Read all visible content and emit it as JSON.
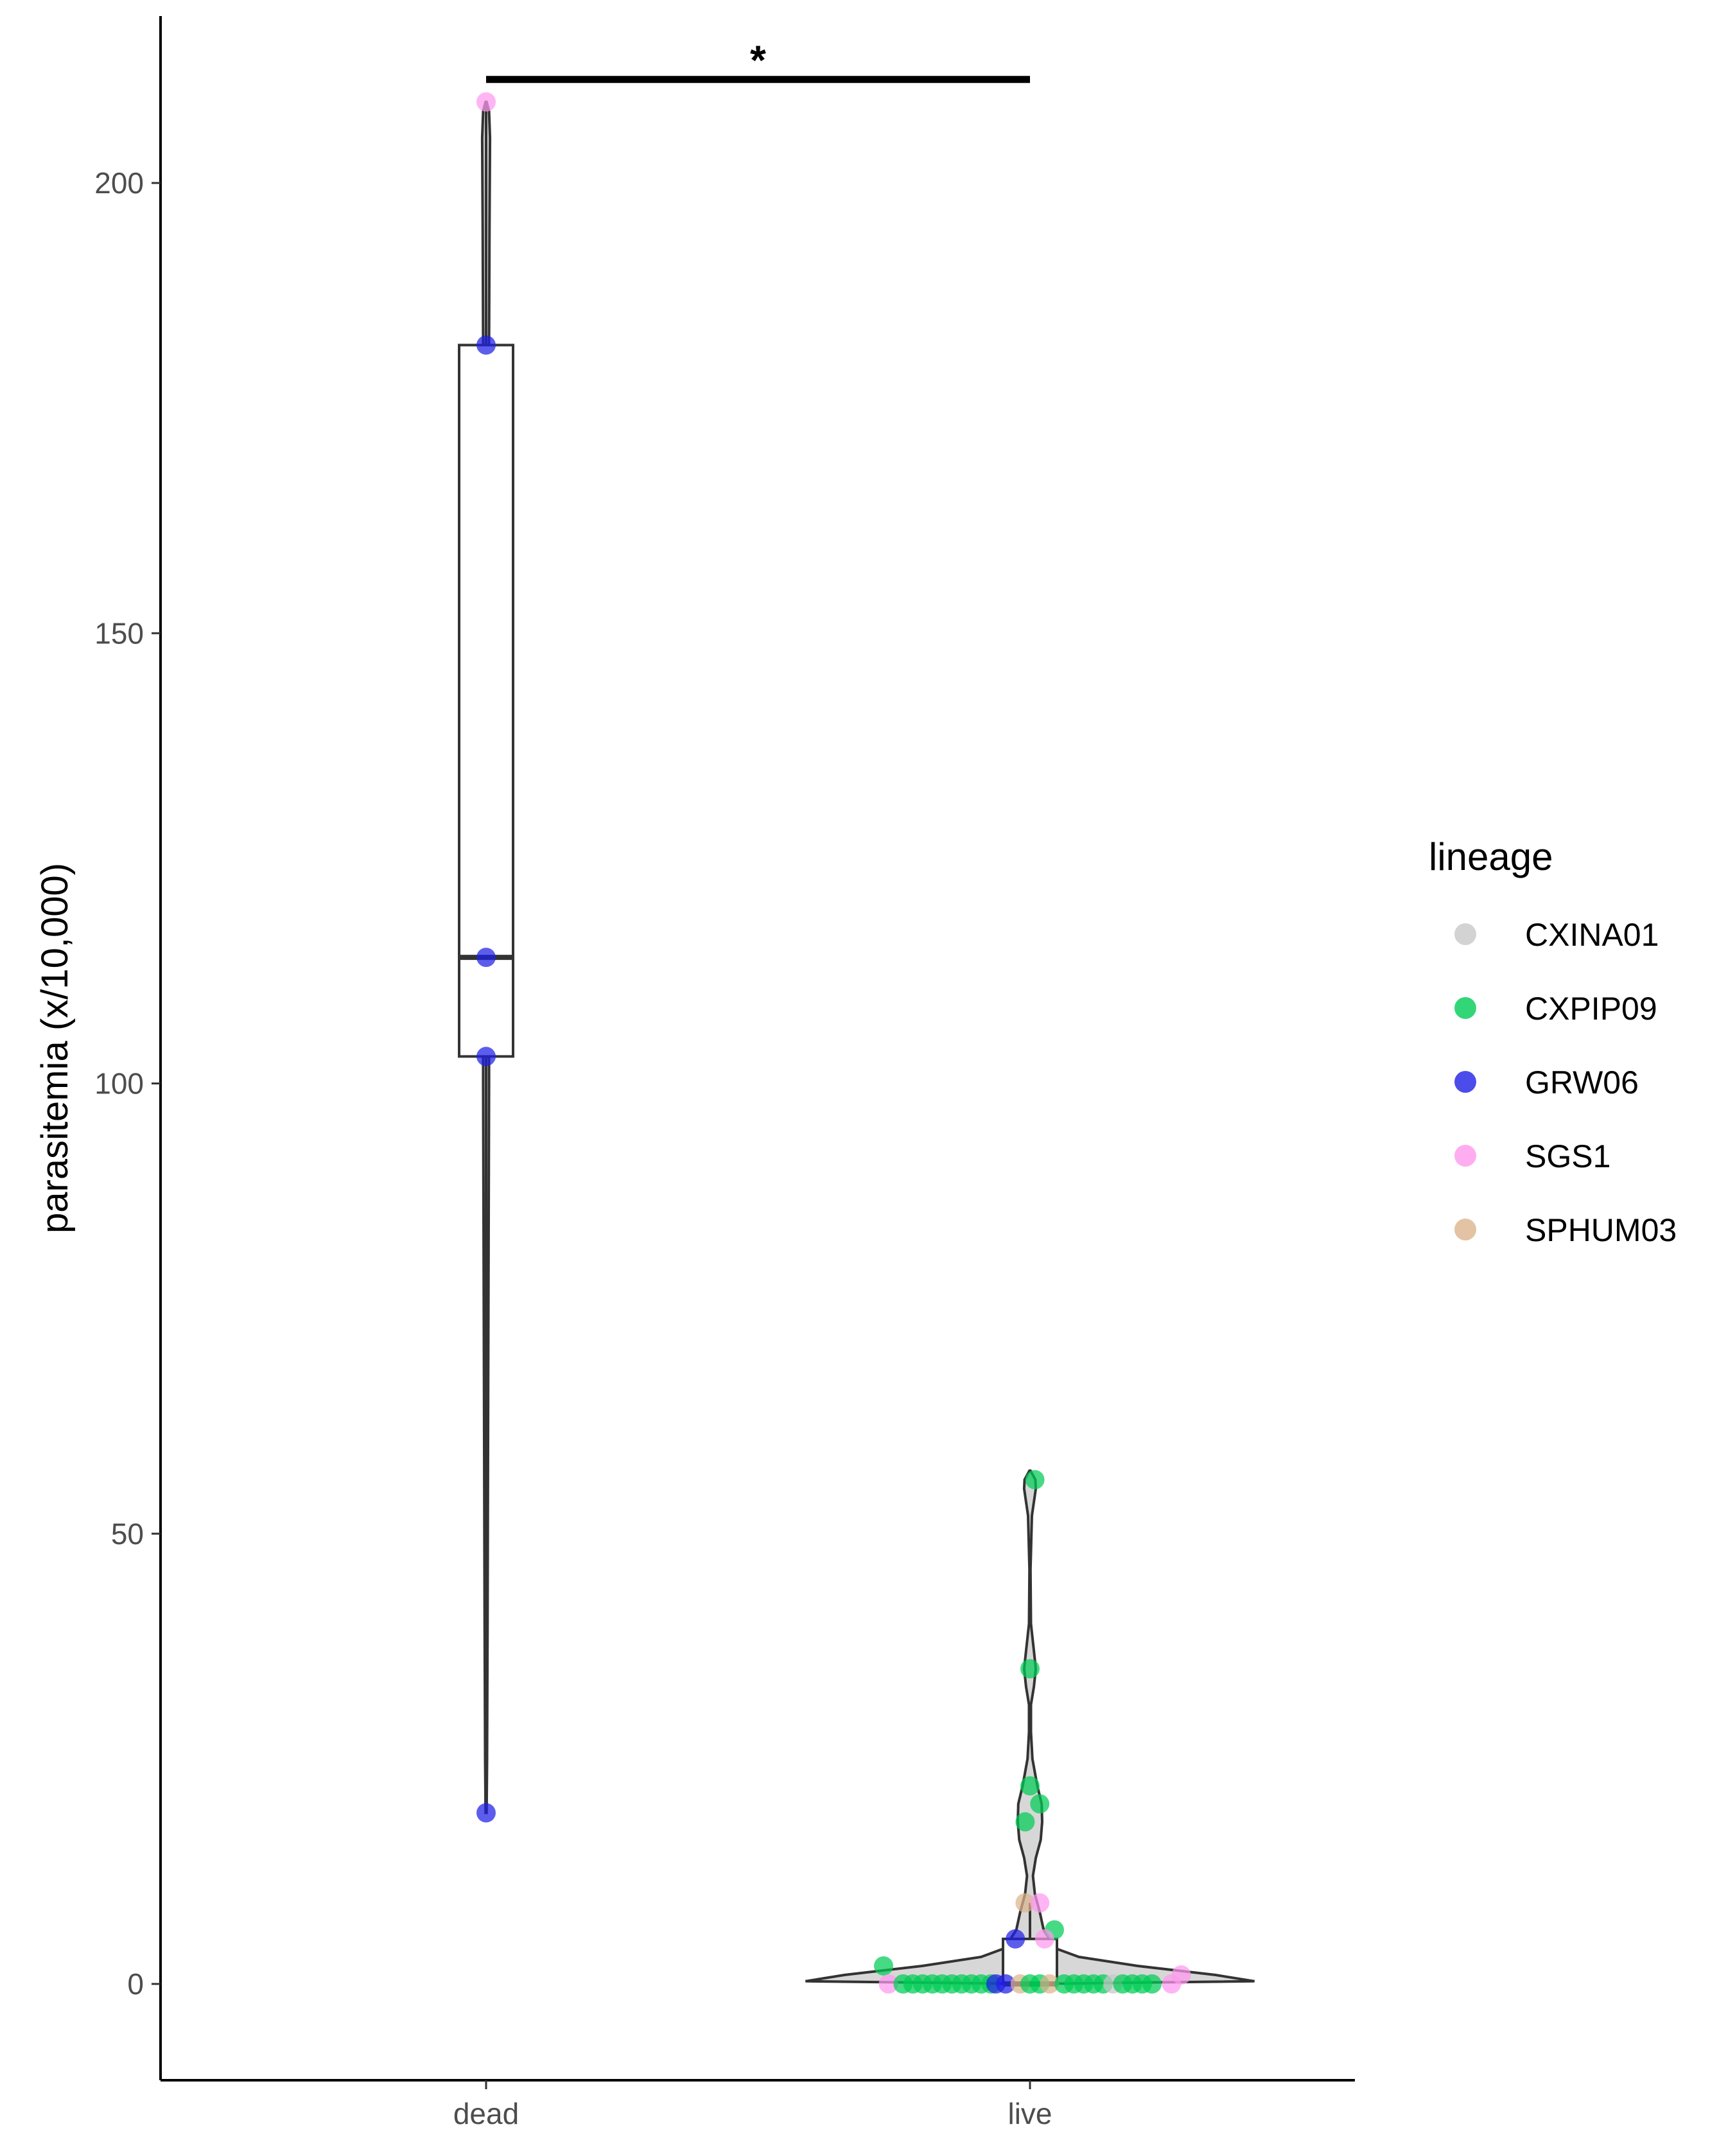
{
  "chart_data": {
    "type": "violin",
    "title": "",
    "xlabel": "",
    "ylabel": "parasitemia (x/10,000)",
    "categories": [
      "dead",
      "live"
    ],
    "yticks": [
      0,
      50,
      100,
      150,
      200
    ],
    "ylim": [
      -10,
      220
    ],
    "grid": false,
    "legend": {
      "title": "lineage",
      "placement": "right",
      "entries": [
        {
          "name": "CXINA01",
          "color": "#c8c8c8"
        },
        {
          "name": "CXPIP09",
          "color": "#00cc55"
        },
        {
          "name": "GRW06",
          "color": "#1f1fe6"
        },
        {
          "name": "SGS1",
          "color": "#ff99ee"
        },
        {
          "name": "SPHUM03",
          "color": "#dcb48c"
        }
      ]
    },
    "boxplots": [
      {
        "category": "dead",
        "lower_whisker": 19,
        "q1": 103,
        "median": 114,
        "q3": 182,
        "upper_whisker": 209
      },
      {
        "category": "live",
        "lower_whisker": 0,
        "q1": 0,
        "median": 0,
        "q3": 5,
        "upper_whisker": 9
      }
    ],
    "points": [
      {
        "category": "dead",
        "lineage": "SGS1",
        "y": 209,
        "jitter": 0
      },
      {
        "category": "dead",
        "lineage": "GRW06",
        "y": 182,
        "jitter": 0
      },
      {
        "category": "dead",
        "lineage": "GRW06",
        "y": 114,
        "jitter": 0
      },
      {
        "category": "dead",
        "lineage": "GRW06",
        "y": 103,
        "jitter": 0
      },
      {
        "category": "dead",
        "lineage": "GRW06",
        "y": 19,
        "jitter": 0
      },
      {
        "category": "live",
        "lineage": "CXPIP09",
        "y": 56,
        "jitter": 0.01
      },
      {
        "category": "live",
        "lineage": "CXPIP09",
        "y": 35,
        "jitter": 0.0
      },
      {
        "category": "live",
        "lineage": "CXPIP09",
        "y": 22,
        "jitter": 0.0
      },
      {
        "category": "live",
        "lineage": "CXPIP09",
        "y": 20,
        "jitter": 0.02
      },
      {
        "category": "live",
        "lineage": "CXPIP09",
        "y": 18,
        "jitter": -0.01
      },
      {
        "category": "live",
        "lineage": "SPHUM03",
        "y": 9,
        "jitter": -0.01
      },
      {
        "category": "live",
        "lineage": "SGS1",
        "y": 9,
        "jitter": 0.02
      },
      {
        "category": "live",
        "lineage": "CXPIP09",
        "y": 6,
        "jitter": 0.05
      },
      {
        "category": "live",
        "lineage": "GRW06",
        "y": 5,
        "jitter": -0.03
      },
      {
        "category": "live",
        "lineage": "SGS1",
        "y": 5,
        "jitter": 0.03
      },
      {
        "category": "live",
        "lineage": "CXPIP09",
        "y": 2,
        "jitter": -0.3
      },
      {
        "category": "live",
        "lineage": "SGS1",
        "y": 0,
        "jitter": -0.29
      },
      {
        "category": "live",
        "lineage": "CXPIP09",
        "y": 0,
        "jitter": -0.26
      },
      {
        "category": "live",
        "lineage": "CXPIP09",
        "y": 0,
        "jitter": -0.24
      },
      {
        "category": "live",
        "lineage": "CXPIP09",
        "y": 0,
        "jitter": -0.22
      },
      {
        "category": "live",
        "lineage": "CXPIP09",
        "y": 0,
        "jitter": -0.2
      },
      {
        "category": "live",
        "lineage": "CXPIP09",
        "y": 0,
        "jitter": -0.18
      },
      {
        "category": "live",
        "lineage": "CXPIP09",
        "y": 0,
        "jitter": -0.16
      },
      {
        "category": "live",
        "lineage": "CXPIP09",
        "y": 0,
        "jitter": -0.14
      },
      {
        "category": "live",
        "lineage": "CXPIP09",
        "y": 0,
        "jitter": -0.12
      },
      {
        "category": "live",
        "lineage": "CXPIP09",
        "y": 0,
        "jitter": -0.1
      },
      {
        "category": "live",
        "lineage": "CXPIP09",
        "y": 0,
        "jitter": -0.08
      },
      {
        "category": "live",
        "lineage": "GRW06",
        "y": 0,
        "jitter": -0.07
      },
      {
        "category": "live",
        "lineage": "GRW06",
        "y": 0,
        "jitter": -0.05
      },
      {
        "category": "live",
        "lineage": "SPHUM03",
        "y": 0,
        "jitter": -0.02
      },
      {
        "category": "live",
        "lineage": "CXPIP09",
        "y": 0,
        "jitter": 0.0
      },
      {
        "category": "live",
        "lineage": "CXPIP09",
        "y": 0,
        "jitter": 0.02
      },
      {
        "category": "live",
        "lineage": "SPHUM03",
        "y": 0,
        "jitter": 0.04
      },
      {
        "category": "live",
        "lineage": "CXPIP09",
        "y": 0,
        "jitter": 0.07
      },
      {
        "category": "live",
        "lineage": "CXPIP09",
        "y": 0,
        "jitter": 0.09
      },
      {
        "category": "live",
        "lineage": "CXPIP09",
        "y": 0,
        "jitter": 0.11
      },
      {
        "category": "live",
        "lineage": "CXPIP09",
        "y": 0,
        "jitter": 0.13
      },
      {
        "category": "live",
        "lineage": "CXPIP09",
        "y": 0,
        "jitter": 0.15
      },
      {
        "category": "live",
        "lineage": "CXINA01",
        "y": 0,
        "jitter": 0.17
      },
      {
        "category": "live",
        "lineage": "CXPIP09",
        "y": 0,
        "jitter": 0.19
      },
      {
        "category": "live",
        "lineage": "CXPIP09",
        "y": 0,
        "jitter": 0.21
      },
      {
        "category": "live",
        "lineage": "CXPIP09",
        "y": 0,
        "jitter": 0.23
      },
      {
        "category": "live",
        "lineage": "CXPIP09",
        "y": 0,
        "jitter": 0.25
      },
      {
        "category": "live",
        "lineage": "SGS1",
        "y": 0,
        "jitter": 0.29
      },
      {
        "category": "live",
        "lineage": "SGS1",
        "y": 1,
        "jitter": 0.31
      }
    ],
    "annotations": [
      {
        "type": "significance",
        "from": "dead",
        "to": "live",
        "y": 211.5,
        "label": "*"
      }
    ]
  }
}
